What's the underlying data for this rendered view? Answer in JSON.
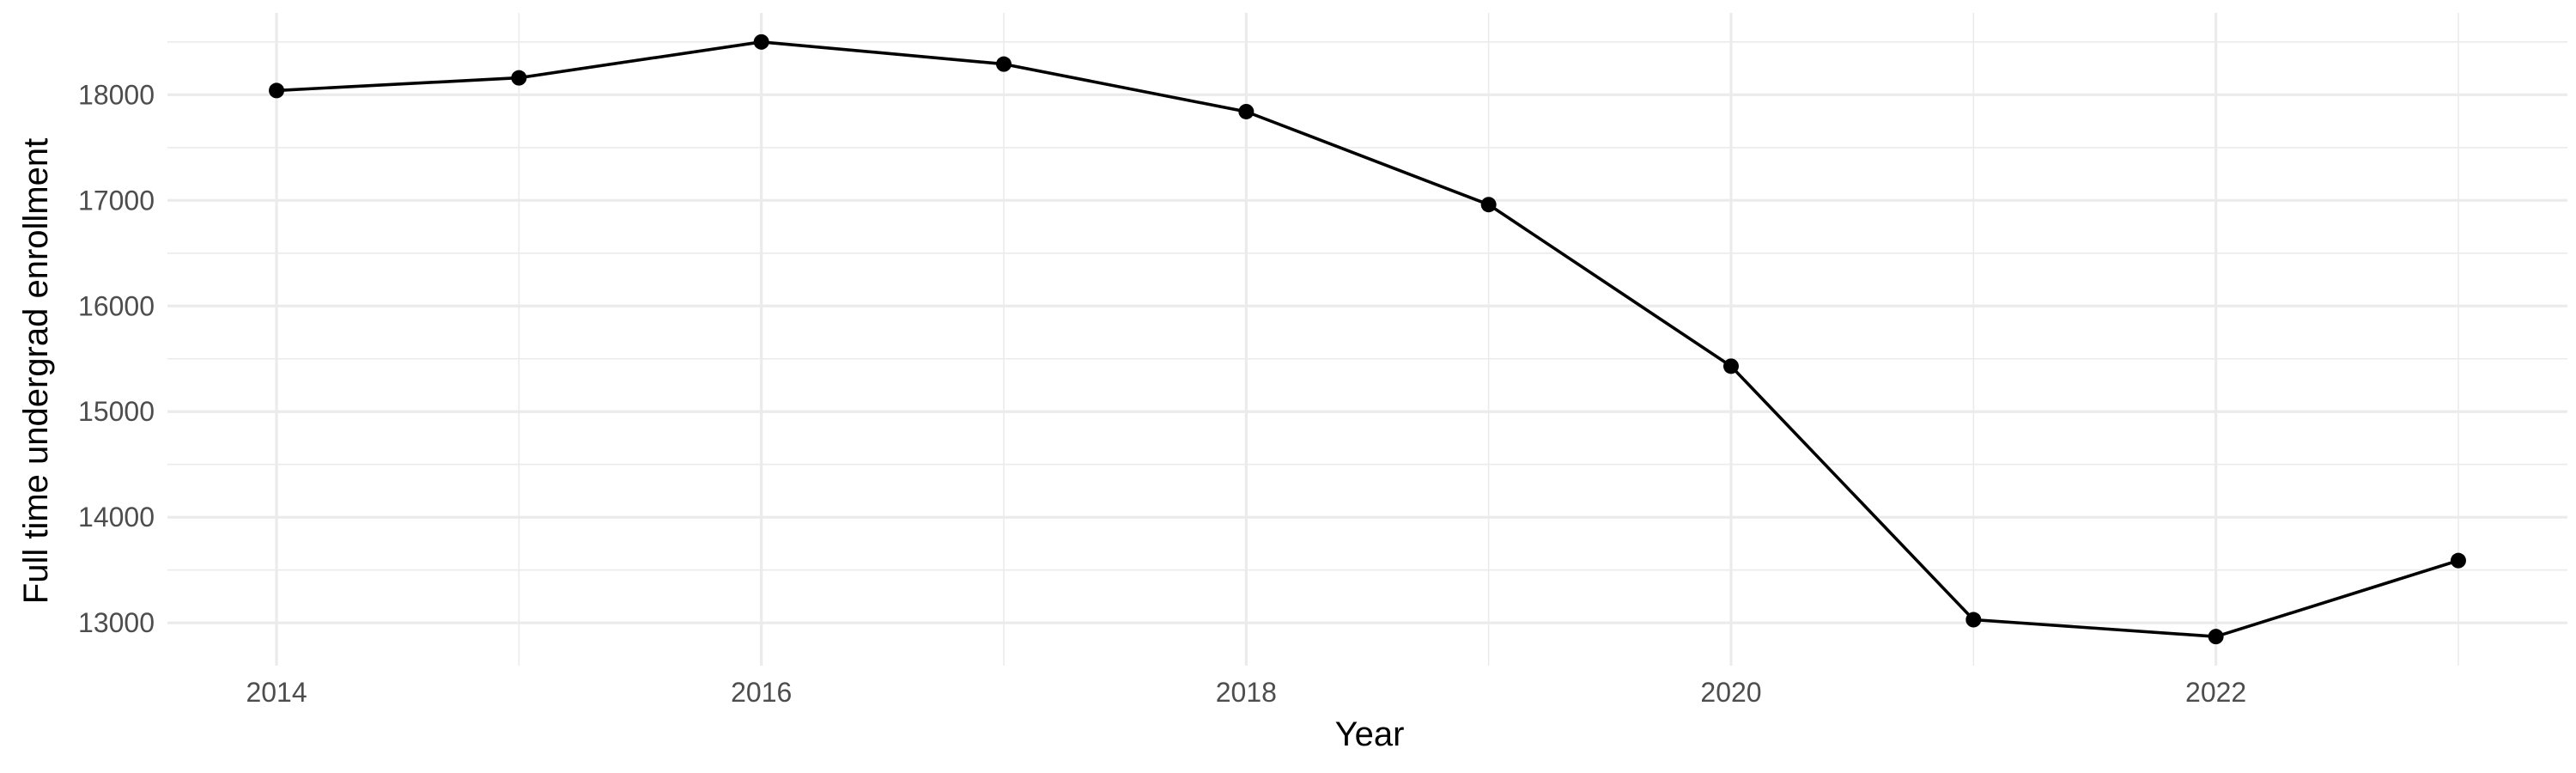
{
  "chart_data": {
    "type": "line",
    "title": "",
    "xlabel": "Year",
    "ylabel": "Full time undergrad enrollment",
    "x": [
      2014,
      2015,
      2016,
      2017,
      2018,
      2019,
      2020,
      2021,
      2022,
      2023
    ],
    "series": [
      {
        "values": [
          18040,
          18160,
          18500,
          18290,
          17840,
          16960,
          15430,
          13030,
          12870,
          13590
        ],
        "color": "#000000",
        "markers": true
      }
    ],
    "xticks": [
      2014,
      2016,
      2018,
      2020,
      2022
    ],
    "xtick_labels": [
      "2014",
      "2016",
      "2018",
      "2020",
      "2022"
    ],
    "yticks": [
      13000,
      14000,
      15000,
      16000,
      17000,
      18000
    ],
    "ytick_labels": [
      "13000",
      "14000",
      "15000",
      "16000",
      "17000",
      "18000"
    ],
    "xlim": [
      2013.55,
      2023.45
    ],
    "ylim": [
      12595,
      18775
    ],
    "grid": true,
    "legend": "none",
    "theme": "minimal"
  }
}
